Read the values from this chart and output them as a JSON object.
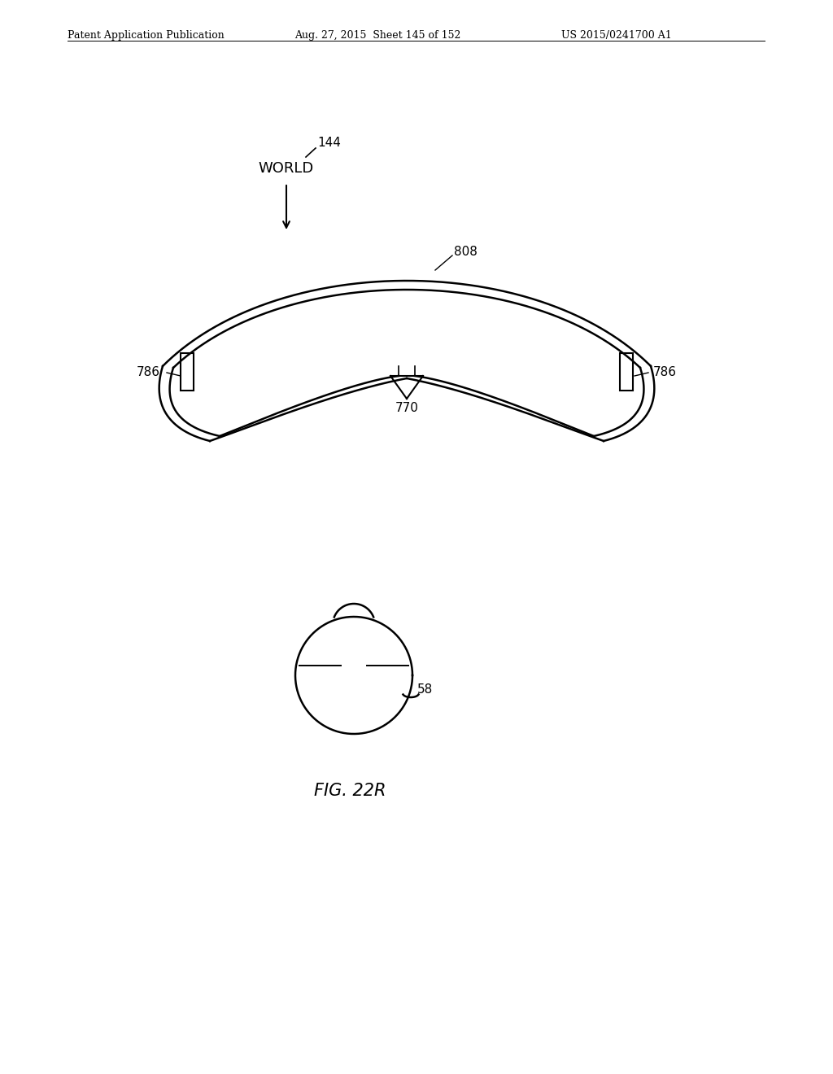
{
  "bg_color": "#ffffff",
  "line_color": "#000000",
  "header_left": "Patent Application Publication",
  "header_mid": "Aug. 27, 2015  Sheet 145 of 152",
  "header_right": "US 2015/0241700 A1",
  "fig_label": "FIG. 22R",
  "label_144": "144",
  "label_world": "WORLD",
  "label_808": "808",
  "label_770": "770",
  "label_786_left": "786",
  "label_786_right": "786",
  "label_58": "58"
}
